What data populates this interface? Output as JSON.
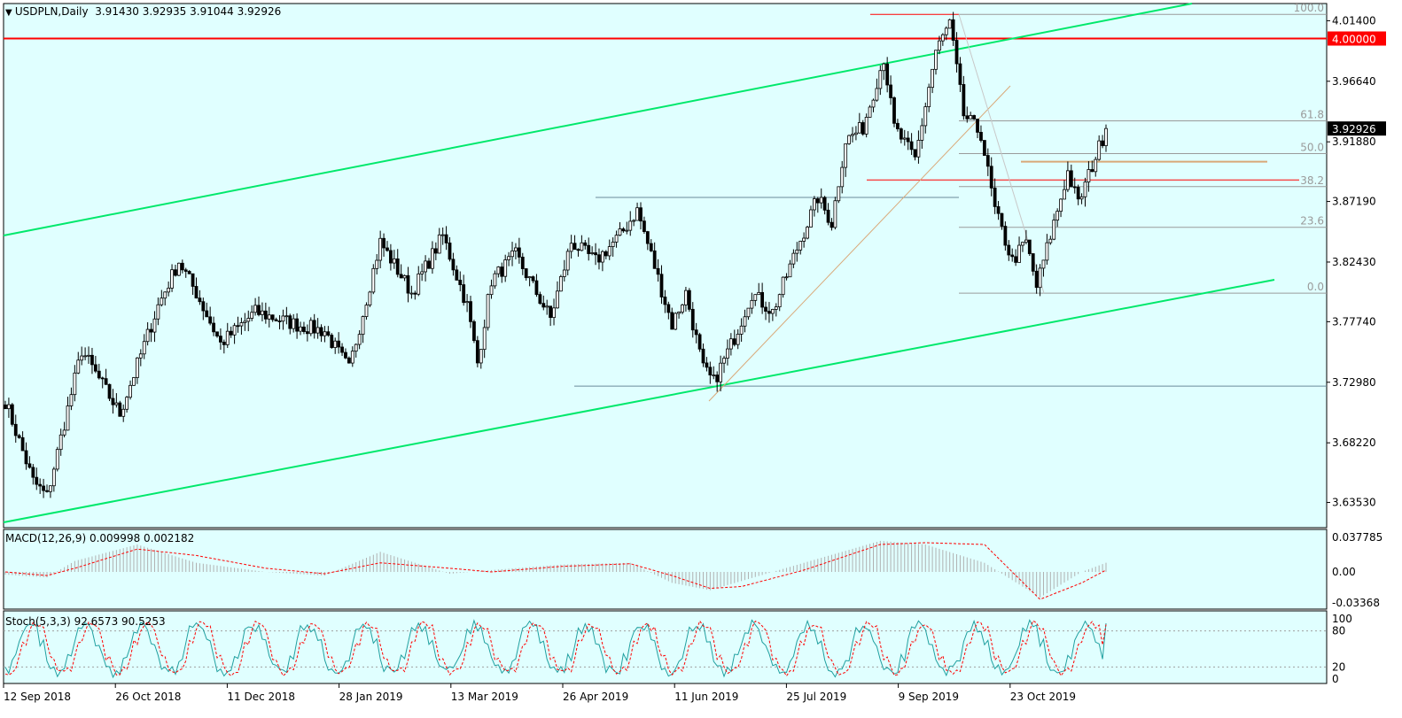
{
  "symbol": {
    "label": "USDPLN,Daily",
    "open": "3.91430",
    "high": "3.92935",
    "low": "3.91044",
    "close": "3.92926"
  },
  "indicators": {
    "macd": {
      "label": "MACD(12,26,9) 0.009998 0.002182",
      "ticks": [
        "0.037785",
        "0.00",
        "-0.03368"
      ]
    },
    "stoch": {
      "label": "Stoch(5,3,3) 92.6573 90.5253",
      "ticks": [
        "100",
        "80",
        "20",
        "0"
      ]
    }
  },
  "colors": {
    "background": "#e0ffff",
    "channel": "#00e86b",
    "resistance": "#ff0000",
    "fibonacci": "#9a9a9a",
    "trendline": "#d9a878",
    "macd_signal": "#ff0000",
    "stoch_main": "#20a0a0",
    "stoch_signal": "#ff0000",
    "current_price_bg": "#000000"
  },
  "chart_data": {
    "type": "candlestick",
    "x_labels": [
      "12 Sep 2018",
      "26 Oct 2018",
      "11 Dec 2018",
      "28 Jan 2019",
      "13 Mar 2019",
      "26 Apr 2019",
      "11 Jun 2019",
      "25 Jul 2019",
      "9 Sep 2019",
      "23 Oct 2019"
    ],
    "y_ticks": [
      "4.01400",
      "3.96640",
      "3.91880",
      "3.87190",
      "3.82430",
      "3.77740",
      "3.72980",
      "3.68220",
      "3.63530"
    ],
    "y_range": [
      3.6155,
      4.0275
    ],
    "price_tags": {
      "level": "4.00000",
      "current": "3.92926"
    },
    "fibonacci": [
      {
        "label": "100.0",
        "price": 4.019
      },
      {
        "label": "61.8",
        "price": 3.9353
      },
      {
        "label": "50.0",
        "price": 3.9095
      },
      {
        "label": "38.2",
        "price": 3.8836
      },
      {
        "label": "23.6",
        "price": 3.8516
      },
      {
        "label": "0.0",
        "price": 3.7998
      }
    ],
    "horizontal_levels": [
      4.0,
      3.8888,
      3.9032,
      3.8751,
      3.7268
    ],
    "price_anchors": [
      {
        "i": 0,
        "p": 3.715
      },
      {
        "i": 8,
        "p": 3.652
      },
      {
        "i": 12,
        "p": 3.64
      },
      {
        "i": 22,
        "p": 3.755
      },
      {
        "i": 33,
        "p": 3.705
      },
      {
        "i": 44,
        "p": 3.79
      },
      {
        "i": 50,
        "p": 3.825
      },
      {
        "i": 55,
        "p": 3.8
      },
      {
        "i": 62,
        "p": 3.76
      },
      {
        "i": 72,
        "p": 3.785
      },
      {
        "i": 84,
        "p": 3.775
      },
      {
        "i": 92,
        "p": 3.77
      },
      {
        "i": 99,
        "p": 3.74
      },
      {
        "i": 108,
        "p": 3.84
      },
      {
        "i": 117,
        "p": 3.8
      },
      {
        "i": 126,
        "p": 3.845
      },
      {
        "i": 133,
        "p": 3.79
      },
      {
        "i": 136,
        "p": 3.745
      },
      {
        "i": 140,
        "p": 3.81
      },
      {
        "i": 147,
        "p": 3.83
      },
      {
        "i": 152,
        "p": 3.805
      },
      {
        "i": 157,
        "p": 3.78
      },
      {
        "i": 163,
        "p": 3.84
      },
      {
        "i": 170,
        "p": 3.825
      },
      {
        "i": 177,
        "p": 3.845
      },
      {
        "i": 182,
        "p": 3.865
      },
      {
        "i": 186,
        "p": 3.83
      },
      {
        "i": 192,
        "p": 3.775
      },
      {
        "i": 196,
        "p": 3.8
      },
      {
        "i": 201,
        "p": 3.74
      },
      {
        "i": 204,
        "p": 3.73
      },
      {
        "i": 210,
        "p": 3.765
      },
      {
        "i": 215,
        "p": 3.8
      },
      {
        "i": 221,
        "p": 3.785
      },
      {
        "i": 228,
        "p": 3.835
      },
      {
        "i": 234,
        "p": 3.875
      },
      {
        "i": 238,
        "p": 3.855
      },
      {
        "i": 242,
        "p": 3.92
      },
      {
        "i": 247,
        "p": 3.93
      },
      {
        "i": 253,
        "p": 3.985
      },
      {
        "i": 256,
        "p": 3.93
      },
      {
        "i": 262,
        "p": 3.905
      },
      {
        "i": 268,
        "p": 3.99
      },
      {
        "i": 272,
        "p": 4.012
      },
      {
        "i": 276,
        "p": 3.94
      },
      {
        "i": 281,
        "p": 3.925
      },
      {
        "i": 285,
        "p": 3.865
      },
      {
        "i": 290,
        "p": 3.825
      },
      {
        "i": 294,
        "p": 3.84
      },
      {
        "i": 297,
        "p": 3.805
      },
      {
        "i": 301,
        "p": 3.845
      },
      {
        "i": 306,
        "p": 3.895
      },
      {
        "i": 309,
        "p": 3.87
      },
      {
        "i": 313,
        "p": 3.9
      },
      {
        "i": 317,
        "p": 3.929
      }
    ],
    "macd_anchors": [
      {
        "i": 0,
        "m": -0.003,
        "s": 0.0
      },
      {
        "i": 12,
        "m": -0.006,
        "s": -0.004
      },
      {
        "i": 20,
        "m": 0.012,
        "s": 0.004
      },
      {
        "i": 38,
        "m": 0.03,
        "s": 0.025
      },
      {
        "i": 55,
        "m": 0.01,
        "s": 0.018
      },
      {
        "i": 75,
        "m": 0.0,
        "s": 0.004
      },
      {
        "i": 92,
        "m": -0.004,
        "s": -0.002
      },
      {
        "i": 108,
        "m": 0.022,
        "s": 0.01
      },
      {
        "i": 128,
        "m": -0.002,
        "s": 0.004
      },
      {
        "i": 140,
        "m": 0.002,
        "s": 0.0
      },
      {
        "i": 160,
        "m": 0.008,
        "s": 0.006
      },
      {
        "i": 180,
        "m": 0.01,
        "s": 0.009
      },
      {
        "i": 192,
        "m": -0.012,
        "s": -0.004
      },
      {
        "i": 203,
        "m": -0.02,
        "s": -0.018
      },
      {
        "i": 212,
        "m": -0.01,
        "s": -0.016
      },
      {
        "i": 230,
        "m": 0.01,
        "s": 0.002
      },
      {
        "i": 252,
        "m": 0.034,
        "s": 0.03
      },
      {
        "i": 265,
        "m": 0.03,
        "s": 0.032
      },
      {
        "i": 282,
        "m": 0.01,
        "s": 0.03
      },
      {
        "i": 298,
        "m": -0.028,
        "s": -0.03
      },
      {
        "i": 310,
        "m": 0.0,
        "s": -0.012
      },
      {
        "i": 317,
        "m": 0.01,
        "s": 0.002
      }
    ],
    "stoch_cycle": [
      15,
      35,
      60,
      82,
      92,
      85,
      60,
      35,
      18,
      10
    ],
    "bar_count": 318
  }
}
